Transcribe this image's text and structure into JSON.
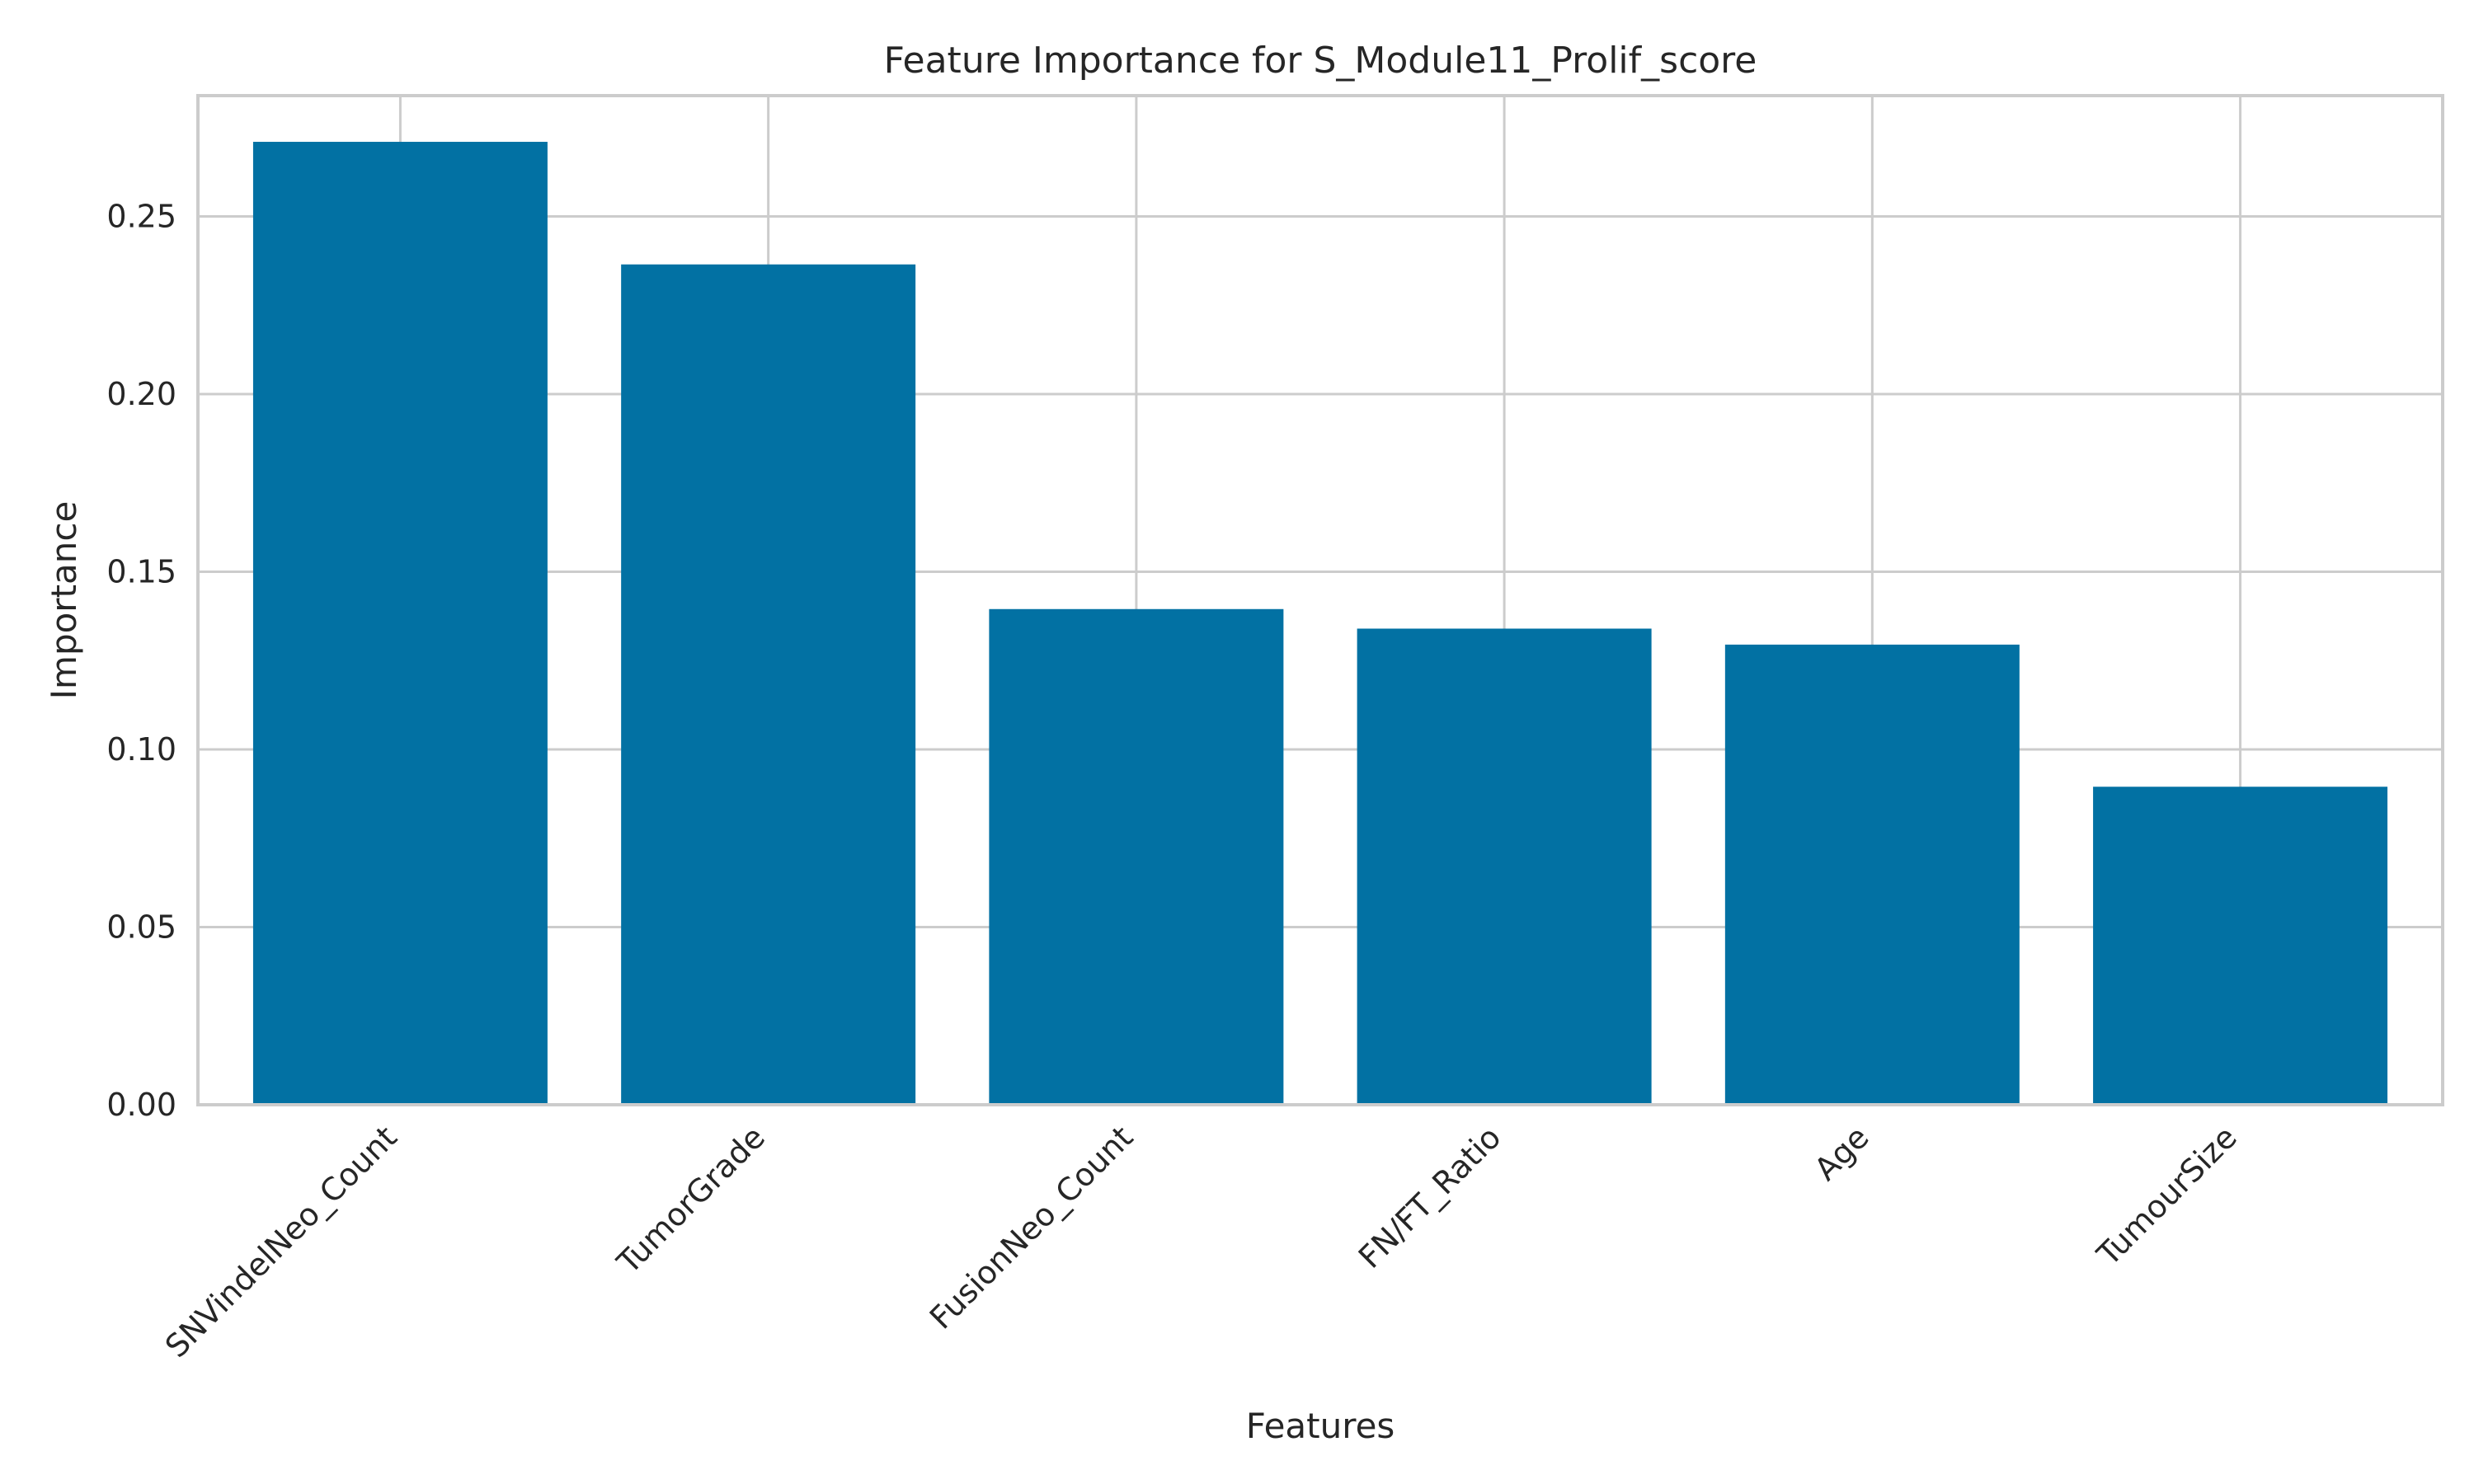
{
  "chart_data": {
    "type": "bar",
    "title": "Feature Importance for S_Module11_Prolif_score",
    "xlabel": "Features",
    "ylabel": "Importance",
    "categories": [
      "SNVindelNeo_Count",
      "TumorGrade",
      "FusionNeo_Count",
      "FN/FT_Ratio",
      "Age",
      "TumourSize"
    ],
    "values": [
      0.271,
      0.2365,
      0.1395,
      0.134,
      0.1295,
      0.0895
    ],
    "ylim": [
      0,
      0.284
    ],
    "yticks": [
      "0.00",
      "0.05",
      "0.10",
      "0.15",
      "0.20",
      "0.25"
    ],
    "grid": true,
    "bar_color": "#0271a3",
    "grid_color": "#cccccc"
  }
}
